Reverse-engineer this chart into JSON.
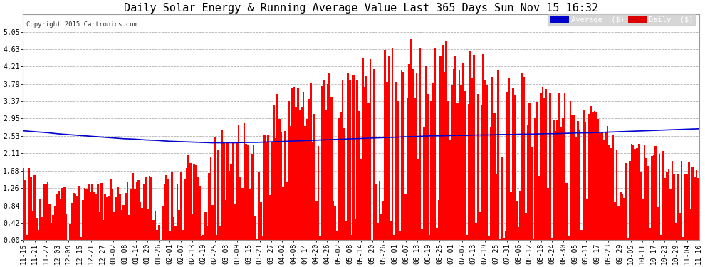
{
  "title": "Daily Solar Energy & Running Average Value Last 365 Days Sun Nov 15 16:32",
  "copyright": "Copyright 2015 Cartronics.com",
  "bar_color": "#ff0000",
  "avg_color": "#0000cc",
  "background_color": "#ffffff",
  "plot_bg_color": "#ffffff",
  "grid_color": "#aaaaaa",
  "ylim": [
    0.0,
    5.47
  ],
  "yticks": [
    0.0,
    0.42,
    0.84,
    1.26,
    1.68,
    2.11,
    2.53,
    2.95,
    3.37,
    3.79,
    4.21,
    4.63,
    5.05
  ],
  "legend_labels": [
    "Average  ($)",
    "Daily  ($)"
  ],
  "legend_colors": [
    "#0000cc",
    "#dd0000"
  ],
  "title_fontsize": 11,
  "tick_fontsize": 7,
  "num_days": 365,
  "date_labels": [
    "11-15",
    "11-21",
    "11-27",
    "12-03",
    "12-09",
    "12-15",
    "12-21",
    "12-27",
    "01-02",
    "01-08",
    "01-14",
    "01-20",
    "01-26",
    "02-01",
    "02-07",
    "02-13",
    "02-19",
    "02-25",
    "03-03",
    "03-09",
    "03-15",
    "03-21",
    "03-27",
    "04-02",
    "04-08",
    "04-14",
    "04-20",
    "04-26",
    "05-02",
    "05-08",
    "05-14",
    "05-20",
    "05-26",
    "06-01",
    "06-07",
    "06-13",
    "06-19",
    "06-25",
    "07-01",
    "07-07",
    "07-13",
    "07-19",
    "07-25",
    "07-31",
    "08-06",
    "08-12",
    "08-18",
    "08-24",
    "08-30",
    "09-05",
    "09-11",
    "09-17",
    "09-23",
    "09-29",
    "10-05",
    "10-11",
    "10-17",
    "10-23",
    "10-29",
    "11-04",
    "11-10"
  ],
  "avg_curve": [
    2.65,
    2.63,
    2.61,
    2.58,
    2.56,
    2.54,
    2.52,
    2.5,
    2.48,
    2.46,
    2.45,
    2.43,
    2.42,
    2.4,
    2.39,
    2.38,
    2.37,
    2.36,
    2.36,
    2.36,
    2.37,
    2.37,
    2.38,
    2.39,
    2.4,
    2.41,
    2.42,
    2.43,
    2.44,
    2.45,
    2.46,
    2.47,
    2.48,
    2.49,
    2.5,
    2.51,
    2.52,
    2.53,
    2.53,
    2.54,
    2.54,
    2.55,
    2.55,
    2.56,
    2.56,
    2.57,
    2.57,
    2.58,
    2.58,
    2.59,
    2.6,
    2.6,
    2.61,
    2.62,
    2.63,
    2.64,
    2.65,
    2.66,
    2.67,
    2.68,
    2.69,
    2.7
  ],
  "daily_seed": 999,
  "bar_width": 1.0
}
